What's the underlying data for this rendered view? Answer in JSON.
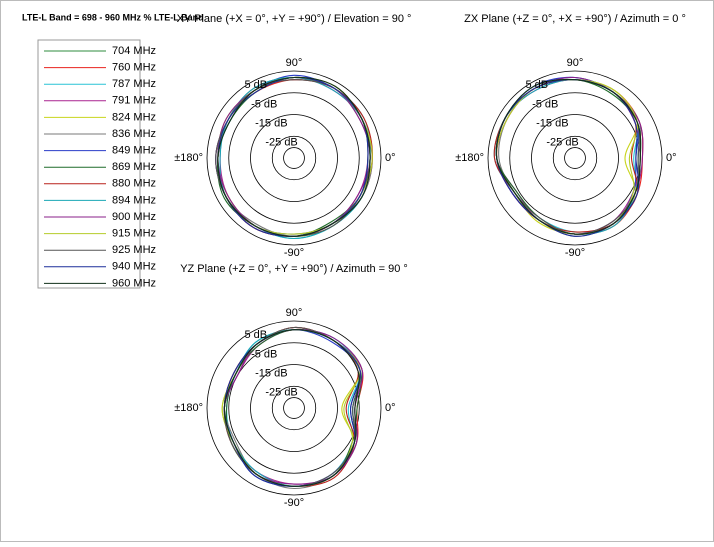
{
  "title": "LTE-L  Band = 698 - 960 MHz % LTE-L Band",
  "legend": {
    "entries": [
      {
        "name": "704 MHz",
        "color": "#2e8b3e"
      },
      {
        "name": "760 MHz",
        "color": "#e8231e"
      },
      {
        "name": "787 MHz",
        "color": "#29c4d6"
      },
      {
        "name": "791 MHz",
        "color": "#a9228f"
      },
      {
        "name": "824 MHz",
        "color": "#c8d41c"
      },
      {
        "name": "836 MHz",
        "color": "#7a7a7a"
      },
      {
        "name": "849 MHz",
        "color": "#2a3cc8"
      },
      {
        "name": "869 MHz",
        "color": "#1f6b2a"
      },
      {
        "name": "880 MHz",
        "color": "#b8201a"
      },
      {
        "name": "894 MHz",
        "color": "#1aa7b5"
      },
      {
        "name": "900 MHz",
        "color": "#8a1f8a"
      },
      {
        "name": "915 MHz",
        "color": "#b5cc2a"
      },
      {
        "name": "925 MHz",
        "color": "#555555"
      },
      {
        "name": "940 MHz",
        "color": "#1c2e9a"
      },
      {
        "name": "960 MHz",
        "color": "#10301a"
      }
    ]
  },
  "chart_data": [
    {
      "type": "polar",
      "title": "XY Plane (+X = 0°, +Y = +90°) / Elevation = 90 °",
      "angles": [
        0,
        30,
        60,
        90,
        120,
        150,
        180,
        210,
        240,
        270,
        300,
        330
      ],
      "rlim": [
        -35,
        5
      ],
      "rticks": [
        {
          "value": 5,
          "label": "5 dB"
        },
        {
          "value": -5,
          "label": "-5 dB"
        },
        {
          "value": -15,
          "label": "-15 dB"
        },
        {
          "value": -25,
          "label": "-25 dB"
        }
      ],
      "angle_ticks": [
        {
          "value": 90,
          "label": "90°"
        },
        {
          "value": 0,
          "label": "0°"
        },
        {
          "value": 180,
          "label": "±180°"
        },
        {
          "value": -90,
          "label": "-90°"
        }
      ],
      "series": [
        {
          "values": [
            0,
            1,
            2,
            2,
            1,
            0,
            0,
            1,
            1,
            1,
            0,
            0
          ]
        },
        {
          "values": [
            1,
            1,
            2,
            1,
            0,
            0,
            1,
            1,
            2,
            1,
            0,
            1
          ]
        },
        {
          "values": [
            0,
            2,
            2,
            2,
            1,
            -1,
            0,
            1,
            1,
            2,
            1,
            0
          ]
        },
        {
          "values": [
            -1,
            1,
            1,
            2,
            1,
            0,
            -1,
            0,
            1,
            1,
            0,
            -1
          ]
        },
        {
          "values": [
            0,
            1,
            3,
            2,
            1,
            1,
            0,
            0,
            1,
            1,
            1,
            0
          ]
        },
        {
          "values": [
            1,
            0,
            2,
            2,
            2,
            0,
            0,
            1,
            0,
            1,
            0,
            1
          ]
        },
        {
          "values": [
            0,
            1,
            2,
            3,
            1,
            0,
            1,
            1,
            1,
            0,
            0,
            0
          ]
        },
        {
          "values": [
            -1,
            1,
            2,
            2,
            0,
            -1,
            0,
            2,
            1,
            1,
            -1,
            0
          ]
        },
        {
          "values": [
            1,
            2,
            2,
            1,
            1,
            0,
            0,
            1,
            2,
            1,
            0,
            0
          ]
        },
        {
          "values": [
            0,
            1,
            1,
            2,
            2,
            0,
            -1,
            1,
            1,
            2,
            1,
            1
          ]
        },
        {
          "values": [
            0,
            0,
            2,
            2,
            1,
            1,
            0,
            0,
            1,
            1,
            0,
            -1
          ]
        },
        {
          "values": [
            1,
            1,
            2,
            2,
            1,
            0,
            0,
            1,
            1,
            0,
            0,
            0
          ]
        },
        {
          "values": [
            0,
            1,
            2,
            1,
            1,
            0,
            1,
            1,
            1,
            1,
            1,
            0
          ]
        },
        {
          "values": [
            -1,
            1,
            2,
            2,
            0,
            0,
            0,
            1,
            2,
            1,
            0,
            0
          ]
        },
        {
          "values": [
            0,
            1,
            3,
            2,
            1,
            -1,
            0,
            1,
            1,
            1,
            0,
            1
          ]
        }
      ]
    },
    {
      "type": "polar",
      "title": "ZX Plane (+Z = 0°, +X = +90°) / Azimuth = 0 °",
      "angles": [
        0,
        30,
        60,
        90,
        120,
        150,
        180,
        210,
        240,
        270,
        300,
        330
      ],
      "rlim": [
        -35,
        5
      ],
      "rticks": [
        {
          "value": 5,
          "label": "5 dB"
        },
        {
          "value": -5,
          "label": "-5 dB"
        },
        {
          "value": -15,
          "label": "-15 dB"
        },
        {
          "value": -25,
          "label": "-25 dB"
        }
      ],
      "angle_ticks": [
        {
          "value": 90,
          "label": "90°"
        },
        {
          "value": 0,
          "label": "0°"
        },
        {
          "value": 180,
          "label": "±180°"
        },
        {
          "value": -90,
          "label": "-90°"
        }
      ],
      "series": [
        {
          "values": [
            -6,
            -2,
            0,
            1,
            2,
            2,
            1,
            -3,
            -2,
            0,
            0,
            -3
          ]
        },
        {
          "values": [
            -4,
            -1,
            1,
            1,
            2,
            1,
            1,
            -2,
            -2,
            0,
            1,
            -2
          ]
        },
        {
          "values": [
            -8,
            -2,
            0,
            2,
            2,
            2,
            2,
            -3,
            -3,
            -1,
            0,
            -3
          ]
        },
        {
          "values": [
            -5,
            -3,
            0,
            1,
            1,
            2,
            1,
            -4,
            -2,
            0,
            -1,
            -4
          ]
        },
        {
          "values": [
            -12,
            -2,
            1,
            1,
            2,
            2,
            1,
            -3,
            -1,
            0,
            0,
            -3
          ]
        },
        {
          "values": [
            -6,
            -1,
            0,
            1,
            2,
            1,
            0,
            -3,
            -2,
            1,
            0,
            -2
          ]
        },
        {
          "values": [
            -7,
            -2,
            0,
            2,
            3,
            2,
            1,
            -2,
            -2,
            0,
            0,
            -4
          ]
        },
        {
          "values": [
            -5,
            -2,
            -1,
            1,
            2,
            2,
            1,
            -4,
            -3,
            0,
            0,
            -3
          ]
        },
        {
          "values": [
            -9,
            -3,
            0,
            1,
            2,
            2,
            2,
            -3,
            -2,
            -1,
            0,
            -2
          ]
        },
        {
          "values": [
            -6,
            -2,
            0,
            1,
            1,
            2,
            1,
            -3,
            -2,
            0,
            1,
            -3
          ]
        },
        {
          "values": [
            -4,
            -1,
            0,
            2,
            2,
            2,
            1,
            -2,
            -2,
            0,
            0,
            -3
          ]
        },
        {
          "values": [
            -10,
            -2,
            1,
            1,
            2,
            1,
            1,
            -3,
            -2,
            0,
            0,
            -4
          ]
        },
        {
          "values": [
            -6,
            -2,
            0,
            1,
            2,
            2,
            1,
            -3,
            -3,
            0,
            -1,
            -3
          ]
        },
        {
          "values": [
            -7,
            -3,
            0,
            1,
            2,
            2,
            1,
            -2,
            -2,
            1,
            0,
            -2
          ]
        },
        {
          "values": [
            -5,
            -2,
            0,
            1,
            3,
            2,
            1,
            -3,
            -2,
            0,
            0,
            -3
          ]
        }
      ]
    },
    {
      "type": "polar",
      "title": "YZ Plane (+Z = 0°, +Y = +90°) / Azimuth = 90 °",
      "angles": [
        0,
        30,
        60,
        90,
        120,
        150,
        180,
        210,
        240,
        270,
        300,
        330
      ],
      "rlim": [
        -35,
        5
      ],
      "rticks": [
        {
          "value": 5,
          "label": "5 dB"
        },
        {
          "value": -5,
          "label": "-5 dB"
        },
        {
          "value": -15,
          "label": "-15 dB"
        },
        {
          "value": -25,
          "label": "-25 dB"
        }
      ],
      "angle_ticks": [
        {
          "value": 90,
          "label": "90°"
        },
        {
          "value": 0,
          "label": "0°"
        },
        {
          "value": 180,
          "label": "±180°"
        },
        {
          "value": -90,
          "label": "-90°"
        }
      ],
      "series": [
        {
          "values": [
            -8,
            0,
            1,
            1,
            -1,
            -4,
            -3,
            -3,
            0,
            1,
            1,
            -3
          ]
        },
        {
          "values": [
            -6,
            1,
            1,
            2,
            -1,
            -3,
            -3,
            -2,
            0,
            1,
            1,
            -2
          ]
        },
        {
          "values": [
            -10,
            0,
            2,
            1,
            0,
            -4,
            -4,
            -3,
            0,
            1,
            0,
            -4
          ]
        },
        {
          "values": [
            -7,
            -1,
            1,
            1,
            -2,
            -5,
            -3,
            -3,
            -1,
            0,
            1,
            -3
          ]
        },
        {
          "values": [
            -13,
            0,
            1,
            1,
            -1,
            -4,
            -2,
            -3,
            0,
            1,
            1,
            -3
          ]
        },
        {
          "values": [
            -8,
            1,
            1,
            2,
            -1,
            -3,
            -3,
            -4,
            0,
            2,
            1,
            -2
          ]
        },
        {
          "values": [
            -9,
            0,
            0,
            1,
            -1,
            -4,
            -3,
            -3,
            1,
            1,
            0,
            -3
          ]
        },
        {
          "values": [
            -6,
            0,
            1,
            1,
            -2,
            -4,
            -4,
            -2,
            0,
            1,
            1,
            -4
          ]
        },
        {
          "values": [
            -11,
            -1,
            1,
            2,
            -1,
            -3,
            -3,
            -3,
            0,
            1,
            2,
            -3
          ]
        },
        {
          "values": [
            -8,
            0,
            1,
            1,
            0,
            -4,
            -3,
            -3,
            -1,
            1,
            1,
            -3
          ]
        },
        {
          "values": [
            -7,
            1,
            2,
            1,
            -1,
            -5,
            -3,
            -3,
            0,
            0,
            1,
            -2
          ]
        },
        {
          "values": [
            -12,
            0,
            1,
            1,
            -1,
            -4,
            -2,
            -3,
            0,
            1,
            1,
            -4
          ]
        },
        {
          "values": [
            -8,
            0,
            1,
            2,
            -1,
            -4,
            -3,
            -2,
            0,
            1,
            0,
            -3
          ]
        },
        {
          "values": [
            -9,
            0,
            1,
            1,
            -1,
            -3,
            -3,
            -3,
            1,
            1,
            1,
            -3
          ]
        },
        {
          "values": [
            -7,
            -1,
            1,
            1,
            -1,
            -4,
            -3,
            -3,
            0,
            1,
            1,
            -3
          ]
        }
      ]
    }
  ]
}
